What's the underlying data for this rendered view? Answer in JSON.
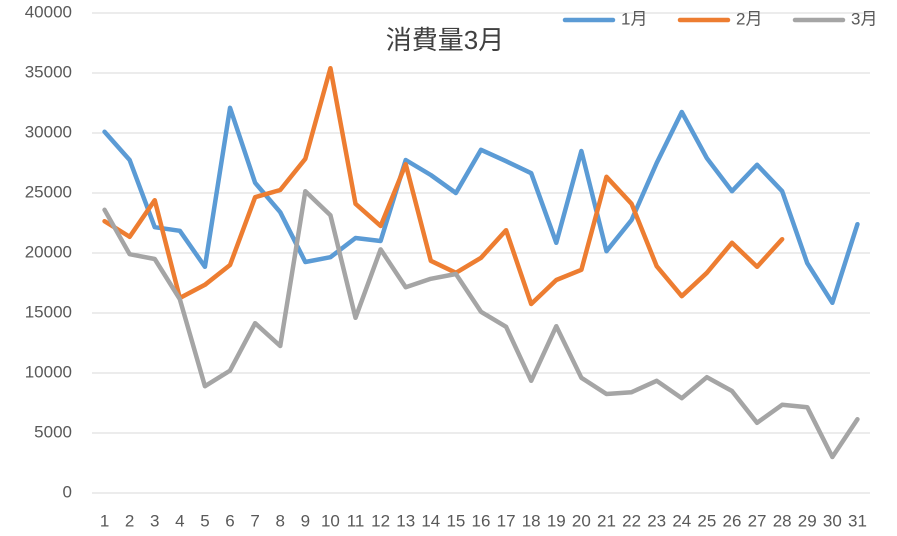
{
  "chart_data": {
    "type": "line",
    "title": "消費量3月",
    "categories": [
      1,
      2,
      3,
      4,
      5,
      6,
      7,
      8,
      9,
      10,
      11,
      12,
      13,
      14,
      15,
      16,
      17,
      18,
      19,
      20,
      21,
      22,
      23,
      24,
      25,
      26,
      27,
      28,
      29,
      30,
      31
    ],
    "series": [
      {
        "name": "1月",
        "color": "#5b9bd5",
        "values": [
          30100,
          27750,
          22150,
          21850,
          18850,
          32100,
          25850,
          23400,
          19250,
          19650,
          21250,
          21000,
          27750,
          26500,
          25000,
          28600,
          27650,
          26650,
          20850,
          28500,
          20150,
          22750,
          27500,
          31750,
          27900,
          25150,
          27350,
          25150,
          19150,
          15850,
          22400
        ]
      },
      {
        "name": "2月",
        "color": "#ed7d31",
        "values": [
          22650,
          21350,
          24400,
          16250,
          17350,
          19000,
          24650,
          25250,
          27850,
          35400,
          24100,
          22250,
          27400,
          19350,
          18350,
          19600,
          21900,
          15750,
          17750,
          18600,
          26350,
          24100,
          18900,
          16400,
          18350,
          20850,
          18850,
          21150,
          null,
          null,
          null
        ]
      },
      {
        "name": "3月",
        "color": "#a5a5a5",
        "values": [
          23600,
          19900,
          19500,
          16150,
          8900,
          10200,
          14150,
          12250,
          25150,
          23150,
          14600,
          20300,
          17150,
          17850,
          18250,
          15100,
          13850,
          9350,
          13900,
          9600,
          8250,
          8400,
          9350,
          7900,
          9650,
          8500,
          5850,
          7350,
          7150,
          3000,
          6150
        ]
      }
    ],
    "ylim": [
      0,
      40000
    ],
    "yticks": [
      0,
      5000,
      10000,
      15000,
      20000,
      25000,
      30000,
      35000,
      40000
    ],
    "grid": true,
    "legend": "top-right"
  }
}
